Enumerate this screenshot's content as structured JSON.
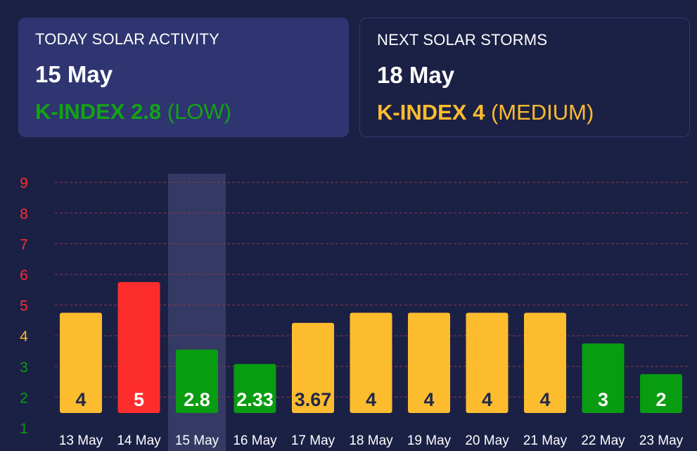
{
  "today": {
    "heading": "TODAY SOLAR ACTIVITY",
    "date": "15 May",
    "index_label": "K-INDEX 2.8",
    "level": "(LOW)",
    "color": "#13a316"
  },
  "next": {
    "heading": "NEXT SOLAR STORMS",
    "date": "18 May",
    "index_label": "K-INDEX 4",
    "level": "(MEDIUM)",
    "color": "#fcbc2e"
  },
  "colors": {
    "low": "#089c11",
    "medium": "#fcbc2e",
    "high": "#fe2d2d",
    "grid": "#8a3a4a",
    "highlight": "#343a64"
  },
  "chart_data": {
    "type": "bar",
    "categories": [
      "13 May",
      "14 May",
      "15 May",
      "16 May",
      "17 May",
      "18 May",
      "19 May",
      "20 May",
      "21 May",
      "22 May",
      "23 May"
    ],
    "values": [
      4,
      5,
      2.8,
      2.33,
      3.67,
      4,
      4,
      4,
      4,
      3,
      2
    ],
    "value_labels": [
      "4",
      "5",
      "2.8",
      "2.33",
      "3.67",
      "4",
      "4",
      "4",
      "4",
      "3",
      "2"
    ],
    "levels": [
      "medium",
      "high",
      "low",
      "low",
      "medium",
      "medium",
      "medium",
      "medium",
      "medium",
      "low",
      "low"
    ],
    "label_colors": [
      "#222848",
      "#ffffff",
      "#ffffff",
      "#ffffff",
      "#222848",
      "#222848",
      "#222848",
      "#222848",
      "#222848",
      "#ffffff",
      "#ffffff"
    ],
    "highlighted_category": "15 May",
    "y_ticks": [
      1,
      2,
      3,
      4,
      5,
      6,
      7,
      8,
      9
    ],
    "ylim": [
      1,
      9
    ],
    "grid": true,
    "title": "",
    "xlabel": "",
    "ylabel": ""
  }
}
